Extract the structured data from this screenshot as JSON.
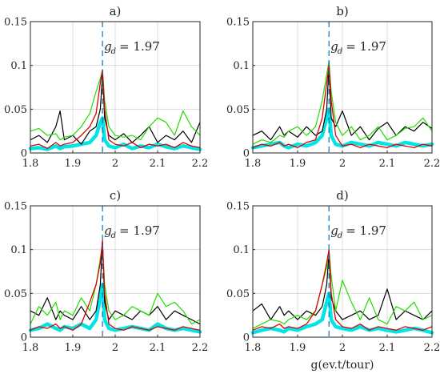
{
  "figure": {
    "xlabel": "g(ev.t/tour)",
    "colors": {
      "black": "#000000",
      "green": "#22dd00",
      "red": "#dd0000",
      "cyan": "#00e5e5",
      "marker": "#0072bd",
      "grid": "#dcdcdc",
      "axis": "#262626"
    }
  },
  "chart_data": [
    {
      "type": "line",
      "panel_label": "a)",
      "annotation": "g_d = 1.97",
      "annotation_text": "= 1.97",
      "marker_x": 1.97,
      "xlim": [
        1.8,
        2.2
      ],
      "ylim": [
        0,
        0.15
      ],
      "x_ticks": [
        "1.8",
        "1.9",
        "2",
        "2.1",
        "2.2"
      ],
      "y_ticks": [
        "0",
        "0.05",
        "0.1",
        "0.15"
      ],
      "grid": true,
      "x": [
        1.8,
        1.82,
        1.84,
        1.86,
        1.87,
        1.88,
        1.9,
        1.92,
        1.94,
        1.955,
        1.965,
        1.97,
        1.975,
        1.985,
        2.0,
        2.02,
        2.04,
        2.06,
        2.08,
        2.1,
        2.12,
        2.14,
        2.16,
        2.18,
        2.2
      ],
      "series": [
        {
          "color": "black",
          "values": [
            0.015,
            0.02,
            0.012,
            0.03,
            0.048,
            0.015,
            0.02,
            0.01,
            0.025,
            0.03,
            0.05,
            0.09,
            0.04,
            0.02,
            0.015,
            0.022,
            0.012,
            0.02,
            0.03,
            0.012,
            0.02,
            0.015,
            0.025,
            0.012,
            0.035
          ]
        },
        {
          "color": "green",
          "values": [
            0.025,
            0.028,
            0.02,
            0.022,
            0.015,
            0.018,
            0.02,
            0.03,
            0.045,
            0.07,
            0.085,
            0.095,
            0.06,
            0.03,
            0.02,
            0.018,
            0.02,
            0.015,
            0.03,
            0.04,
            0.035,
            0.02,
            0.048,
            0.03,
            0.02
          ]
        },
        {
          "color": "red",
          "values": [
            0.008,
            0.01,
            0.005,
            0.012,
            0.008,
            0.01,
            0.012,
            0.02,
            0.03,
            0.045,
            0.08,
            0.095,
            0.05,
            0.015,
            0.01,
            0.008,
            0.012,
            0.006,
            0.01,
            0.008,
            0.01,
            0.006,
            0.012,
            0.008,
            0.006
          ]
        },
        {
          "color": "cyan",
          "values": [
            0.005,
            0.006,
            0.004,
            0.008,
            0.005,
            0.007,
            0.008,
            0.01,
            0.012,
            0.02,
            0.035,
            0.04,
            0.015,
            0.008,
            0.006,
            0.01,
            0.005,
            0.008,
            0.006,
            0.01,
            0.007,
            0.005,
            0.008,
            0.006,
            0.004
          ]
        }
      ]
    },
    {
      "type": "line",
      "panel_label": "b)",
      "annotation": "g_d = 1.97",
      "annotation_text": "= 1.97",
      "marker_x": 1.97,
      "xlim": [
        1.8,
        2.2
      ],
      "ylim": [
        0,
        0.15
      ],
      "x_ticks": [
        "1.8",
        "1.9",
        "2",
        "2.1",
        "2.2"
      ],
      "y_ticks": [
        "0",
        "0.05",
        "0.1",
        "0.15"
      ],
      "grid": true,
      "x": [
        1.8,
        1.82,
        1.84,
        1.86,
        1.87,
        1.88,
        1.9,
        1.92,
        1.94,
        1.955,
        1.965,
        1.97,
        1.975,
        1.985,
        2.0,
        2.02,
        2.04,
        2.06,
        2.08,
        2.1,
        2.12,
        2.14,
        2.16,
        2.18,
        2.2
      ],
      "series": [
        {
          "color": "black",
          "values": [
            0.02,
            0.025,
            0.015,
            0.03,
            0.02,
            0.025,
            0.018,
            0.03,
            0.02,
            0.025,
            0.05,
            0.1,
            0.04,
            0.03,
            0.048,
            0.02,
            0.03,
            0.015,
            0.028,
            0.035,
            0.02,
            0.03,
            0.025,
            0.035,
            0.028
          ]
        },
        {
          "color": "green",
          "values": [
            0.01,
            0.015,
            0.012,
            0.02,
            0.018,
            0.025,
            0.03,
            0.02,
            0.03,
            0.06,
            0.09,
            0.105,
            0.07,
            0.035,
            0.02,
            0.03,
            0.015,
            0.02,
            0.03,
            0.015,
            0.02,
            0.028,
            0.03,
            0.04,
            0.025
          ]
        },
        {
          "color": "red",
          "values": [
            0.006,
            0.01,
            0.008,
            0.012,
            0.008,
            0.01,
            0.006,
            0.012,
            0.015,
            0.04,
            0.08,
            0.1,
            0.06,
            0.02,
            0.008,
            0.01,
            0.006,
            0.01,
            0.008,
            0.006,
            0.01,
            0.008,
            0.006,
            0.01,
            0.008
          ]
        },
        {
          "color": "cyan",
          "values": [
            0.006,
            0.008,
            0.01,
            0.012,
            0.008,
            0.006,
            0.01,
            0.008,
            0.012,
            0.02,
            0.04,
            0.05,
            0.02,
            0.01,
            0.008,
            0.012,
            0.01,
            0.008,
            0.012,
            0.01,
            0.008,
            0.012,
            0.01,
            0.008,
            0.01
          ]
        }
      ]
    },
    {
      "type": "line",
      "panel_label": "c)",
      "annotation": "g_d = 1.97",
      "annotation_text": "= 1.97",
      "marker_x": 1.97,
      "xlim": [
        1.8,
        2.2
      ],
      "ylim": [
        0,
        0.15
      ],
      "x_ticks": [
        "1.8",
        "1.9",
        "2",
        "2.1",
        "2.2"
      ],
      "y_ticks": [
        "0",
        "0.05",
        "0.1",
        "0.15"
      ],
      "grid": true,
      "x": [
        1.8,
        1.82,
        1.84,
        1.86,
        1.87,
        1.88,
        1.9,
        1.92,
        1.94,
        1.955,
        1.965,
        1.97,
        1.975,
        1.985,
        2.0,
        2.02,
        2.04,
        2.06,
        2.08,
        2.1,
        2.12,
        2.14,
        2.16,
        2.18,
        2.2
      ],
      "series": [
        {
          "color": "black",
          "values": [
            0.03,
            0.025,
            0.045,
            0.02,
            0.03,
            0.025,
            0.02,
            0.035,
            0.02,
            0.03,
            0.06,
            0.11,
            0.04,
            0.02,
            0.03,
            0.025,
            0.02,
            0.03,
            0.025,
            0.035,
            0.02,
            0.03,
            0.025,
            0.02,
            0.015
          ]
        },
        {
          "color": "green",
          "values": [
            0.015,
            0.035,
            0.025,
            0.04,
            0.02,
            0.03,
            0.025,
            0.045,
            0.03,
            0.06,
            0.09,
            0.105,
            0.06,
            0.03,
            0.02,
            0.025,
            0.035,
            0.03,
            0.025,
            0.05,
            0.035,
            0.04,
            0.03,
            0.015,
            0.02
          ]
        },
        {
          "color": "red",
          "values": [
            0.008,
            0.012,
            0.01,
            0.015,
            0.01,
            0.012,
            0.008,
            0.015,
            0.04,
            0.06,
            0.085,
            0.11,
            0.05,
            0.015,
            0.01,
            0.008,
            0.012,
            0.01,
            0.008,
            0.012,
            0.01,
            0.008,
            0.012,
            0.01,
            0.008
          ]
        },
        {
          "color": "cyan",
          "values": [
            0.008,
            0.01,
            0.015,
            0.01,
            0.008,
            0.012,
            0.01,
            0.015,
            0.01,
            0.02,
            0.045,
            0.06,
            0.02,
            0.01,
            0.008,
            0.01,
            0.012,
            0.01,
            0.008,
            0.015,
            0.01,
            0.008,
            0.01,
            0.008,
            0.006
          ]
        }
      ]
    },
    {
      "type": "line",
      "panel_label": "d)",
      "annotation": "g_d = 1.97",
      "annotation_text": "= 1.97",
      "marker_x": 1.97,
      "xlim": [
        1.8,
        2.2
      ],
      "ylim": [
        0,
        0.15
      ],
      "x_ticks": [
        "1.8",
        "1.9",
        "2",
        "2.1",
        "2.2"
      ],
      "y_ticks": [
        "0",
        "0.05",
        "0.1",
        "0.15"
      ],
      "grid": true,
      "x": [
        1.8,
        1.82,
        1.84,
        1.86,
        1.87,
        1.88,
        1.9,
        1.92,
        1.94,
        1.955,
        1.965,
        1.97,
        1.975,
        1.985,
        2.0,
        2.02,
        2.04,
        2.06,
        2.08,
        2.1,
        2.12,
        2.14,
        2.16,
        2.18,
        2.2
      ],
      "series": [
        {
          "color": "black",
          "values": [
            0.03,
            0.038,
            0.02,
            0.035,
            0.025,
            0.03,
            0.02,
            0.03,
            0.025,
            0.035,
            0.06,
            0.095,
            0.045,
            0.03,
            0.02,
            0.025,
            0.03,
            0.02,
            0.025,
            0.055,
            0.02,
            0.03,
            0.025,
            0.02,
            0.03
          ]
        },
        {
          "color": "green",
          "values": [
            0.01,
            0.015,
            0.02,
            0.018,
            0.015,
            0.02,
            0.025,
            0.02,
            0.03,
            0.06,
            0.08,
            0.1,
            0.07,
            0.03,
            0.065,
            0.04,
            0.02,
            0.045,
            0.02,
            0.015,
            0.035,
            0.03,
            0.04,
            0.02,
            0.025
          ]
        },
        {
          "color": "red",
          "values": [
            0.008,
            0.012,
            0.01,
            0.015,
            0.01,
            0.012,
            0.01,
            0.015,
            0.03,
            0.06,
            0.085,
            0.1,
            0.05,
            0.02,
            0.012,
            0.01,
            0.015,
            0.008,
            0.012,
            0.01,
            0.008,
            0.012,
            0.01,
            0.008,
            0.012
          ]
        },
        {
          "color": "cyan",
          "values": [
            0.005,
            0.008,
            0.01,
            0.008,
            0.006,
            0.01,
            0.008,
            0.012,
            0.015,
            0.02,
            0.04,
            0.05,
            0.02,
            0.012,
            0.01,
            0.008,
            0.012,
            0.008,
            0.01,
            0.008,
            0.006,
            0.008,
            0.01,
            0.008,
            0.005
          ]
        }
      ]
    }
  ]
}
